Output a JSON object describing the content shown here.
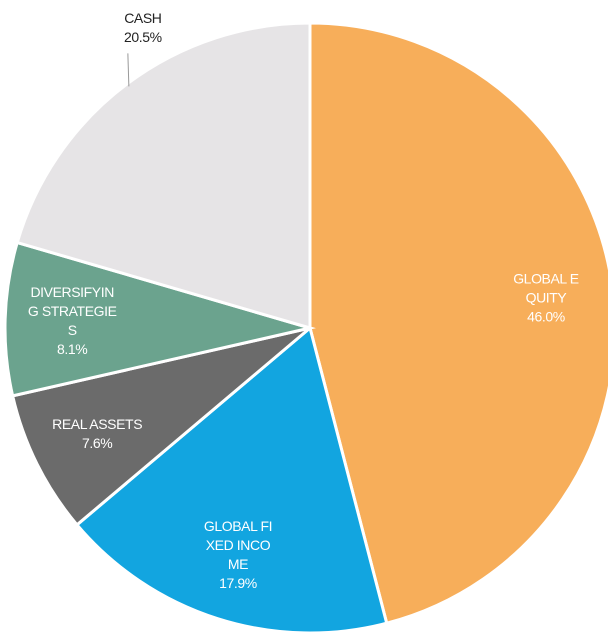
{
  "chart_data": {
    "type": "pie",
    "categories": [
      "GLOBAL EQUITY",
      "GLOBAL FIXED INCOME",
      "REAL ASSETS",
      "DIVERSIFYING STRATEGIES",
      "CASH"
    ],
    "values": [
      46.0,
      17.9,
      7.6,
      8.1,
      20.5
    ],
    "value_labels": [
      "46.0%",
      "17.9%",
      "7.6%",
      "8.1%",
      "20.5%"
    ],
    "colors": [
      "#f7ae5a",
      "#12a5e0",
      "#6b6b6b",
      "#6ba38e",
      "#e6e4e6"
    ]
  }
}
